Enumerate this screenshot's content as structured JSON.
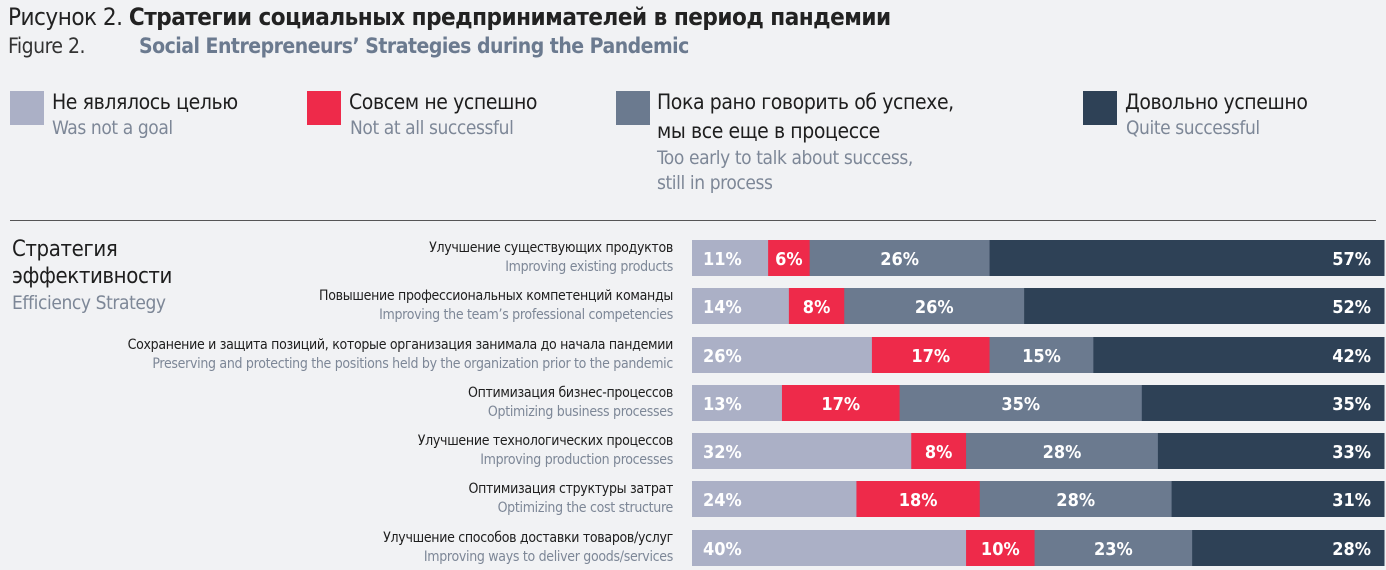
{
  "title": {
    "ru_prefix": "Рисунок 2.",
    "ru": "Стратегии социальных предпринимателей в период пандемии",
    "en_prefix": "Figure 2.",
    "en": "Social Entrepreneurs’ Strategies during the Pandemic"
  },
  "legend": [
    {
      "ru": "Не являлось целью",
      "en": "Was not a goal",
      "color": "#abb0c6"
    },
    {
      "ru": "Совсем не успешно",
      "en": "Not at all successful",
      "color": "#ee2a4a"
    },
    {
      "ru": "Пока рано говорить об успехе, мы все еще в процессе",
      "ru1": "Пока рано говорить об успехе,",
      "ru2": "мы все еще в процессе",
      "en1": "Too early to talk about success,",
      "en2": "still in process",
      "color": "#6b7a8f"
    },
    {
      "ru": "Довольно успешно",
      "en": "Quite successful",
      "color": "#2e4156"
    }
  ],
  "group": {
    "ru1": "Стратегия",
    "ru2": "эффективности",
    "en": "Efficiency Strategy"
  },
  "chart_data": {
    "type": "bar",
    "orientation": "horizontal",
    "stacked": true,
    "categories": [
      {
        "ru": "Улучшение существующих продуктов",
        "en": "Improving existing products"
      },
      {
        "ru": "Повышение профессиональных компетенций команды",
        "en": "Improving the team’s professional competencies"
      },
      {
        "ru": "Сохранение и защита позиций, которые организация занимала до начала пандемии",
        "en": "Preserving and protecting the positions held by the organization prior to the pandemic"
      },
      {
        "ru": "Оптимизация бизнес-процессов",
        "en": "Optimizing business processes"
      },
      {
        "ru": "Улучшение технологических процессов",
        "en": "Improving production processes"
      },
      {
        "ru": "Оптимизация структуры затрат",
        "en": "Optimizing the cost structure"
      },
      {
        "ru": "Улучшение способов доставки товаров/услуг",
        "en": "Improving ways to deliver goods/services"
      }
    ],
    "series": [
      {
        "name": "Was not a goal",
        "color": "#abb0c6",
        "values": [
          11,
          14,
          26,
          13,
          32,
          24,
          40
        ]
      },
      {
        "name": "Not at all successful",
        "color": "#ee2a4a",
        "values": [
          6,
          8,
          17,
          17,
          8,
          18,
          10
        ]
      },
      {
        "name": "Too early to talk about success, still in process",
        "color": "#6b7a8f",
        "values": [
          26,
          26,
          15,
          35,
          28,
          28,
          23
        ]
      },
      {
        "name": "Quite successful",
        "color": "#2e4156",
        "values": [
          57,
          52,
          42,
          35,
          33,
          31,
          28
        ]
      }
    ],
    "unit": "%"
  }
}
